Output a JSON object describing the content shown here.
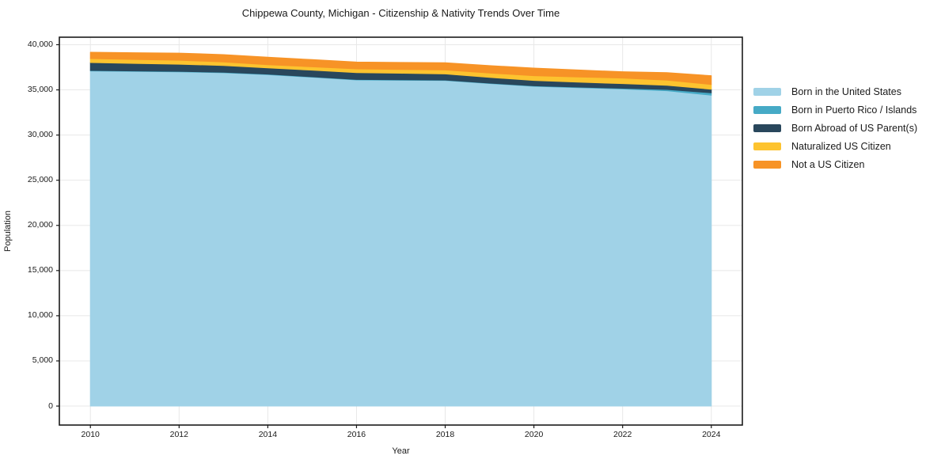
{
  "title": "Chippewa County, Michigan - Citizenship & Nativity Trends Over Time",
  "chart_data": {
    "type": "area",
    "stacked": true,
    "title": "Chippewa County, Michigan - Citizenship & Nativity Trends Over Time",
    "xlabel": "Year",
    "ylabel": "Population",
    "x": [
      2010,
      2011,
      2012,
      2013,
      2014,
      2015,
      2016,
      2017,
      2018,
      2019,
      2020,
      2021,
      2022,
      2023,
      2024
    ],
    "series": [
      {
        "name": "Born in the United States",
        "color": "#a0d2e7",
        "values": [
          37100,
          37050,
          37000,
          36900,
          36690,
          36400,
          36100,
          36070,
          36040,
          35700,
          35400,
          35250,
          35100,
          34900,
          34410
        ]
      },
      {
        "name": "Born in Puerto Rico / Islands",
        "color": "#46aac6",
        "values": [
          50,
          50,
          50,
          50,
          50,
          50,
          50,
          50,
          50,
          50,
          50,
          60,
          80,
          150,
          260
        ]
      },
      {
        "name": "Born Abroad of US Parent(s)",
        "color": "#29475c",
        "values": [
          880,
          830,
          790,
          750,
          700,
          730,
          760,
          720,
          680,
          635,
          590,
          550,
          510,
          460,
          405
        ]
      },
      {
        "name": "Naturalized US Citizen",
        "color": "#fdc32f",
        "values": [
          435,
          437,
          440,
          395,
          350,
          380,
          415,
          425,
          440,
          480,
          525,
          570,
          615,
          570,
          525
        ]
      },
      {
        "name": "Not a US Citizen",
        "color": "#f79326",
        "values": [
          700,
          745,
          790,
          810,
          825,
          790,
          760,
          775,
          790,
          820,
          848,
          775,
          700,
          830,
          965
        ]
      }
    ],
    "xticks": [
      2010,
      2012,
      2014,
      2016,
      2018,
      2020,
      2022,
      2024
    ],
    "xtick_labels": [
      "2010",
      "2012",
      "2014",
      "2016",
      "2018",
      "2020",
      "2022",
      "2024"
    ],
    "yticks": [
      0,
      5000,
      10000,
      15000,
      20000,
      25000,
      30000,
      35000,
      40000
    ],
    "ytick_labels": [
      "0",
      "5,000",
      "10,000",
      "15,000",
      "20,000",
      "25,000",
      "30,000",
      "35,000",
      "40,000"
    ],
    "xlim": [
      2009.3,
      2024.7
    ],
    "ylim": [
      -2100,
      40830
    ],
    "grid": true,
    "grid_color": "#e8e8e8",
    "spine_color": "#1a1a1a",
    "legend_position": "right"
  }
}
